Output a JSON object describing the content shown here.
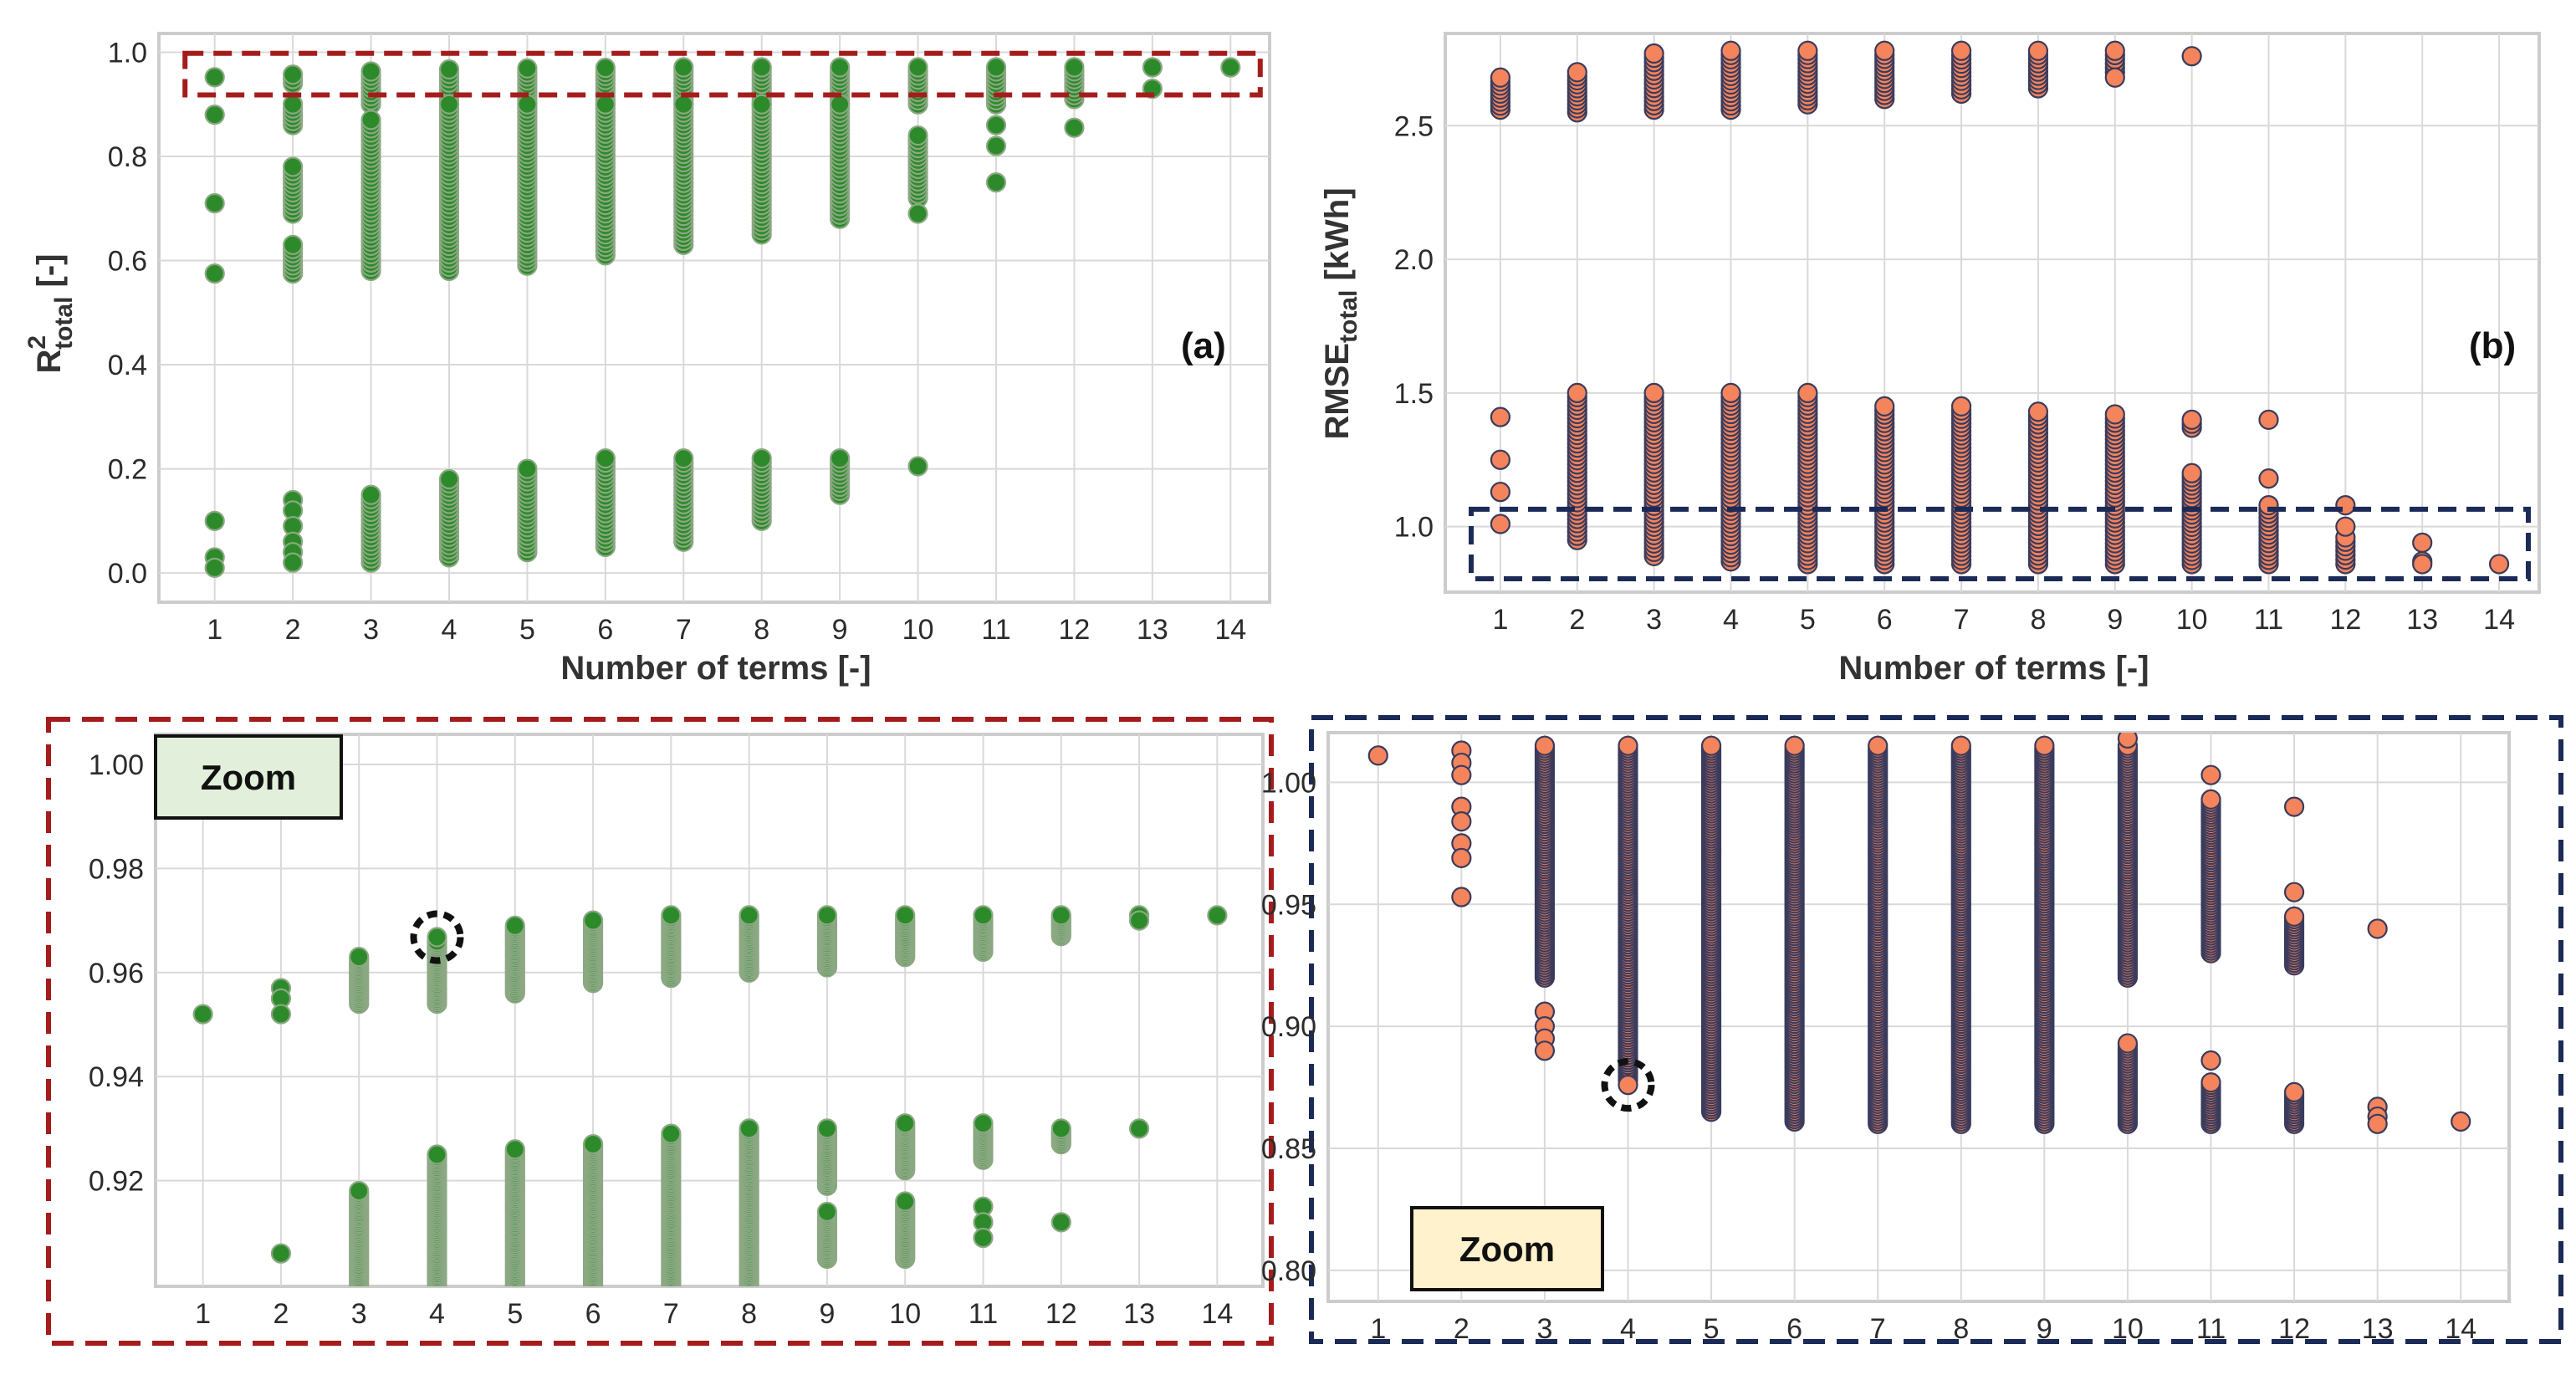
{
  "figure": {
    "colors": {
      "green": "#2d8a2a",
      "green_edge": "#8ba883",
      "orange": "#f4845c",
      "orange_edge": "#3a3b5c",
      "red_dash": "#a51c1c",
      "navy_dash": "#1b2a57",
      "grid": "#d9d9d9",
      "frame": "#cccccc",
      "zoom_green_bg": "#e2efda",
      "zoom_orange_bg": "#fff2cc"
    }
  },
  "chart_data": [
    {
      "id": "a",
      "type": "scatter",
      "panel_label": "(a)",
      "xlabel": "Number of terms [-]",
      "ylabel_main": "R",
      "ylabel_sup": "2",
      "ylabel_sub": "total",
      "ylabel_unit": " [-]",
      "x_ticks": [
        "1",
        "2",
        "3",
        "4",
        "5",
        "6",
        "7",
        "8",
        "9",
        "10",
        "11",
        "12",
        "13",
        "14"
      ],
      "xlim": [
        0.5,
        14.5
      ],
      "ylim": [
        -0.04,
        1.02
      ],
      "y_ticks": [
        0.0,
        0.2,
        0.4,
        0.6,
        0.8,
        1.0
      ],
      "y_tick_labels": [
        "0.0",
        "0.2",
        "0.4",
        "0.6",
        "0.8",
        "1.0"
      ],
      "highlight_box": {
        "x": [
          0.62,
          14.38
        ],
        "y": [
          0.918,
          0.998
        ],
        "color": "red"
      },
      "columns": [
        {
          "x": 1,
          "points": [
            0.952,
            0.88,
            0.71,
            0.575,
            0.1,
            0.03,
            0.01
          ]
        },
        {
          "x": 2,
          "ranges": [
            [
              0.94,
              0.957
            ],
            [
              0.86,
              0.9
            ],
            [
              0.69,
              0.78
            ],
            [
              0.575,
              0.63
            ]
          ],
          "points": [
            0.14,
            0.12,
            0.09,
            0.06,
            0.04,
            0.02
          ]
        },
        {
          "x": 3,
          "ranges": [
            [
              0.9,
              0.963
            ],
            [
              0.58,
              0.87
            ],
            [
              0.02,
              0.15
            ]
          ]
        },
        {
          "x": 4,
          "ranges": [
            [
              0.9,
              0.967
            ],
            [
              0.58,
              0.9
            ],
            [
              0.03,
              0.18
            ]
          ]
        },
        {
          "x": 5,
          "ranges": [
            [
              0.9,
              0.969
            ],
            [
              0.59,
              0.9
            ],
            [
              0.04,
              0.2
            ]
          ]
        },
        {
          "x": 6,
          "ranges": [
            [
              0.9,
              0.97
            ],
            [
              0.61,
              0.9
            ],
            [
              0.05,
              0.22
            ]
          ]
        },
        {
          "x": 7,
          "ranges": [
            [
              0.9,
              0.971
            ],
            [
              0.63,
              0.9
            ],
            [
              0.06,
              0.22
            ]
          ]
        },
        {
          "x": 8,
          "ranges": [
            [
              0.9,
              0.971
            ],
            [
              0.65,
              0.9
            ],
            [
              0.1,
              0.22
            ]
          ]
        },
        {
          "x": 9,
          "ranges": [
            [
              0.9,
              0.971
            ],
            [
              0.68,
              0.9
            ],
            [
              0.15,
              0.22
            ]
          ]
        },
        {
          "x": 10,
          "ranges": [
            [
              0.9,
              0.971
            ],
            [
              0.72,
              0.84
            ]
          ],
          "points": [
            0.69,
            0.205
          ]
        },
        {
          "x": 11,
          "ranges": [
            [
              0.9,
              0.971
            ]
          ],
          "points": [
            0.86,
            0.82,
            0.75
          ]
        },
        {
          "x": 12,
          "ranges": [
            [
              0.91,
              0.971
            ]
          ],
          "points": [
            0.855
          ]
        },
        {
          "x": 13,
          "points": [
            0.971,
            0.93
          ]
        },
        {
          "x": 14,
          "points": [
            0.971
          ]
        }
      ]
    },
    {
      "id": "b",
      "type": "scatter",
      "panel_label": "(b)",
      "xlabel": "Number of terms [-]",
      "ylabel_main": "RMSE",
      "ylabel_sub": "total",
      "ylabel_unit": " [kWh]",
      "x_ticks": [
        "1",
        "2",
        "3",
        "4",
        "5",
        "6",
        "7",
        "8",
        "9",
        "10",
        "11",
        "12",
        "13",
        "14"
      ],
      "xlim": [
        0.5,
        14.5
      ],
      "ylim": [
        0.78,
        2.82
      ],
      "y_ticks": [
        1.0,
        1.5,
        2.0,
        2.5
      ],
      "y_tick_labels": [
        "1.0",
        "1.5",
        "2.0",
        "2.5"
      ],
      "highlight_box": {
        "x": [
          0.62,
          14.38
        ],
        "y": [
          0.805,
          1.065
        ],
        "color": "navy"
      },
      "columns": [
        {
          "x": 1,
          "ranges": [
            [
              2.56,
              2.68
            ]
          ],
          "points": [
            1.41,
            1.25,
            1.13,
            1.01
          ]
        },
        {
          "x": 2,
          "ranges": [
            [
              2.55,
              2.7
            ],
            [
              0.95,
              1.5
            ]
          ]
        },
        {
          "x": 3,
          "ranges": [
            [
              2.56,
              2.77
            ],
            [
              0.89,
              1.5
            ]
          ]
        },
        {
          "x": 4,
          "ranges": [
            [
              2.56,
              2.78
            ],
            [
              0.87,
              1.5
            ]
          ]
        },
        {
          "x": 5,
          "ranges": [
            [
              2.58,
              2.78
            ],
            [
              0.86,
              1.5
            ]
          ]
        },
        {
          "x": 6,
          "ranges": [
            [
              2.6,
              2.78
            ],
            [
              0.86,
              1.45
            ]
          ]
        },
        {
          "x": 7,
          "ranges": [
            [
              2.62,
              2.78
            ],
            [
              0.86,
              1.45
            ]
          ]
        },
        {
          "x": 8,
          "ranges": [
            [
              2.64,
              2.78
            ],
            [
              0.86,
              1.43
            ]
          ]
        },
        {
          "x": 9,
          "ranges": [
            [
              2.7,
              2.78
            ],
            [
              0.86,
              1.42
            ]
          ],
          "points": [
            2.68
          ]
        },
        {
          "x": 10,
          "ranges": [
            [
              0.86,
              1.2
            ],
            [
              1.37,
              1.4
            ]
          ],
          "points": [
            2.76
          ]
        },
        {
          "x": 11,
          "ranges": [
            [
              0.86,
              1.08
            ]
          ],
          "points": [
            1.4,
            1.18
          ]
        },
        {
          "x": 12,
          "ranges": [
            [
              0.86,
              0.96
            ]
          ],
          "points": [
            1.08,
            1.0
          ]
        },
        {
          "x": 13,
          "points": [
            0.94,
            0.87,
            0.86
          ]
        },
        {
          "x": 14,
          "points": [
            0.86
          ]
        }
      ]
    },
    {
      "id": "c",
      "type": "scatter",
      "zoom_label": "Zoom",
      "x_ticks": [
        "1",
        "2",
        "3",
        "4",
        "5",
        "6",
        "7",
        "8",
        "9",
        "10",
        "11",
        "12",
        "13",
        "14"
      ],
      "xlim": [
        0.5,
        14.5
      ],
      "ylim": [
        0.9,
        1.0045
      ],
      "y_ticks": [
        0.92,
        0.94,
        0.96,
        0.98,
        1.0
      ],
      "y_tick_labels": [
        "0.92",
        "0.94",
        "0.96",
        "0.98",
        "1.00"
      ],
      "marked_point": {
        "x": 4,
        "y": 0.9668
      },
      "columns": [
        {
          "x": 1,
          "points": [
            0.952
          ]
        },
        {
          "x": 2,
          "points": [
            0.957,
            0.955,
            0.952,
            0.906
          ]
        },
        {
          "x": 3,
          "ranges": [
            [
              0.954,
              0.963
            ],
            [
              0.9,
              0.918
            ]
          ]
        },
        {
          "x": 4,
          "ranges": [
            [
              0.954,
              0.966
            ],
            [
              0.9,
              0.925
            ]
          ],
          "points": [
            0.9668
          ]
        },
        {
          "x": 5,
          "ranges": [
            [
              0.956,
              0.969
            ],
            [
              0.9,
              0.926
            ]
          ]
        },
        {
          "x": 6,
          "ranges": [
            [
              0.958,
              0.97
            ],
            [
              0.9,
              0.927
            ]
          ]
        },
        {
          "x": 7,
          "ranges": [
            [
              0.959,
              0.971
            ],
            [
              0.9,
              0.929
            ]
          ]
        },
        {
          "x": 8,
          "ranges": [
            [
              0.96,
              0.971
            ],
            [
              0.9,
              0.93
            ]
          ]
        },
        {
          "x": 9,
          "ranges": [
            [
              0.961,
              0.971
            ],
            [
              0.905,
              0.914
            ],
            [
              0.919,
              0.93
            ]
          ]
        },
        {
          "x": 10,
          "ranges": [
            [
              0.963,
              0.971
            ],
            [
              0.905,
              0.916
            ],
            [
              0.922,
              0.931
            ]
          ]
        },
        {
          "x": 11,
          "ranges": [
            [
              0.964,
              0.971
            ],
            [
              0.924,
              0.931
            ]
          ],
          "points": [
            0.915,
            0.912,
            0.909
          ]
        },
        {
          "x": 12,
          "ranges": [
            [
              0.967,
              0.971
            ],
            [
              0.927,
              0.93
            ]
          ],
          "points": [
            0.912
          ]
        },
        {
          "x": 13,
          "points": [
            0.971,
            0.97,
            0.93
          ]
        },
        {
          "x": 14,
          "points": [
            0.971
          ]
        }
      ]
    },
    {
      "id": "d",
      "type": "scatter",
      "zoom_label": "Zoom",
      "x_ticks": [
        "1",
        "2",
        "3",
        "4",
        "5",
        "6",
        "7",
        "8",
        "9",
        "10",
        "11",
        "12",
        "13",
        "14"
      ],
      "xlim": [
        0.5,
        14.5
      ],
      "ylim": [
        0.79,
        1.019
      ],
      "y_ticks": [
        0.8,
        0.85,
        0.9,
        0.95,
        1.0
      ],
      "y_tick_labels": [
        "0.80",
        "0.85",
        "0.90",
        "0.95",
        "1.00"
      ],
      "marked_point": {
        "x": 4,
        "y": 0.876
      },
      "columns": [
        {
          "x": 1,
          "points": [
            1.011
          ]
        },
        {
          "x": 2,
          "points": [
            1.013,
            1.008,
            1.003,
            0.99,
            0.984,
            0.975,
            0.969,
            0.953
          ]
        },
        {
          "x": 3,
          "ranges": [
            [
              0.92,
              1.015
            ]
          ],
          "points": [
            0.906,
            0.9,
            0.895,
            0.89
          ]
        },
        {
          "x": 4,
          "ranges": [
            [
              0.878,
              1.015
            ]
          ],
          "points": [
            0.876
          ]
        },
        {
          "x": 5,
          "ranges": [
            [
              0.865,
              1.015
            ]
          ]
        },
        {
          "x": 6,
          "ranges": [
            [
              0.861,
              1.015
            ]
          ]
        },
        {
          "x": 7,
          "ranges": [
            [
              0.86,
              1.015
            ]
          ]
        },
        {
          "x": 8,
          "ranges": [
            [
              0.86,
              1.015
            ]
          ]
        },
        {
          "x": 9,
          "ranges": [
            [
              0.86,
              1.015
            ]
          ]
        },
        {
          "x": 10,
          "ranges": [
            [
              0.92,
              1.015
            ],
            [
              0.86,
              0.893
            ]
          ],
          "points": [
            1.018
          ]
        },
        {
          "x": 11,
          "ranges": [
            [
              0.93,
              0.993
            ],
            [
              0.86,
              0.877
            ]
          ],
          "points": [
            1.003,
            0.886
          ]
        },
        {
          "x": 12,
          "ranges": [
            [
              0.925,
              0.945
            ],
            [
              0.86,
              0.873
            ]
          ],
          "points": [
            0.99,
            0.955
          ]
        },
        {
          "x": 13,
          "points": [
            0.94,
            0.867,
            0.863,
            0.86
          ]
        },
        {
          "x": 14,
          "points": [
            0.861
          ]
        }
      ]
    }
  ]
}
